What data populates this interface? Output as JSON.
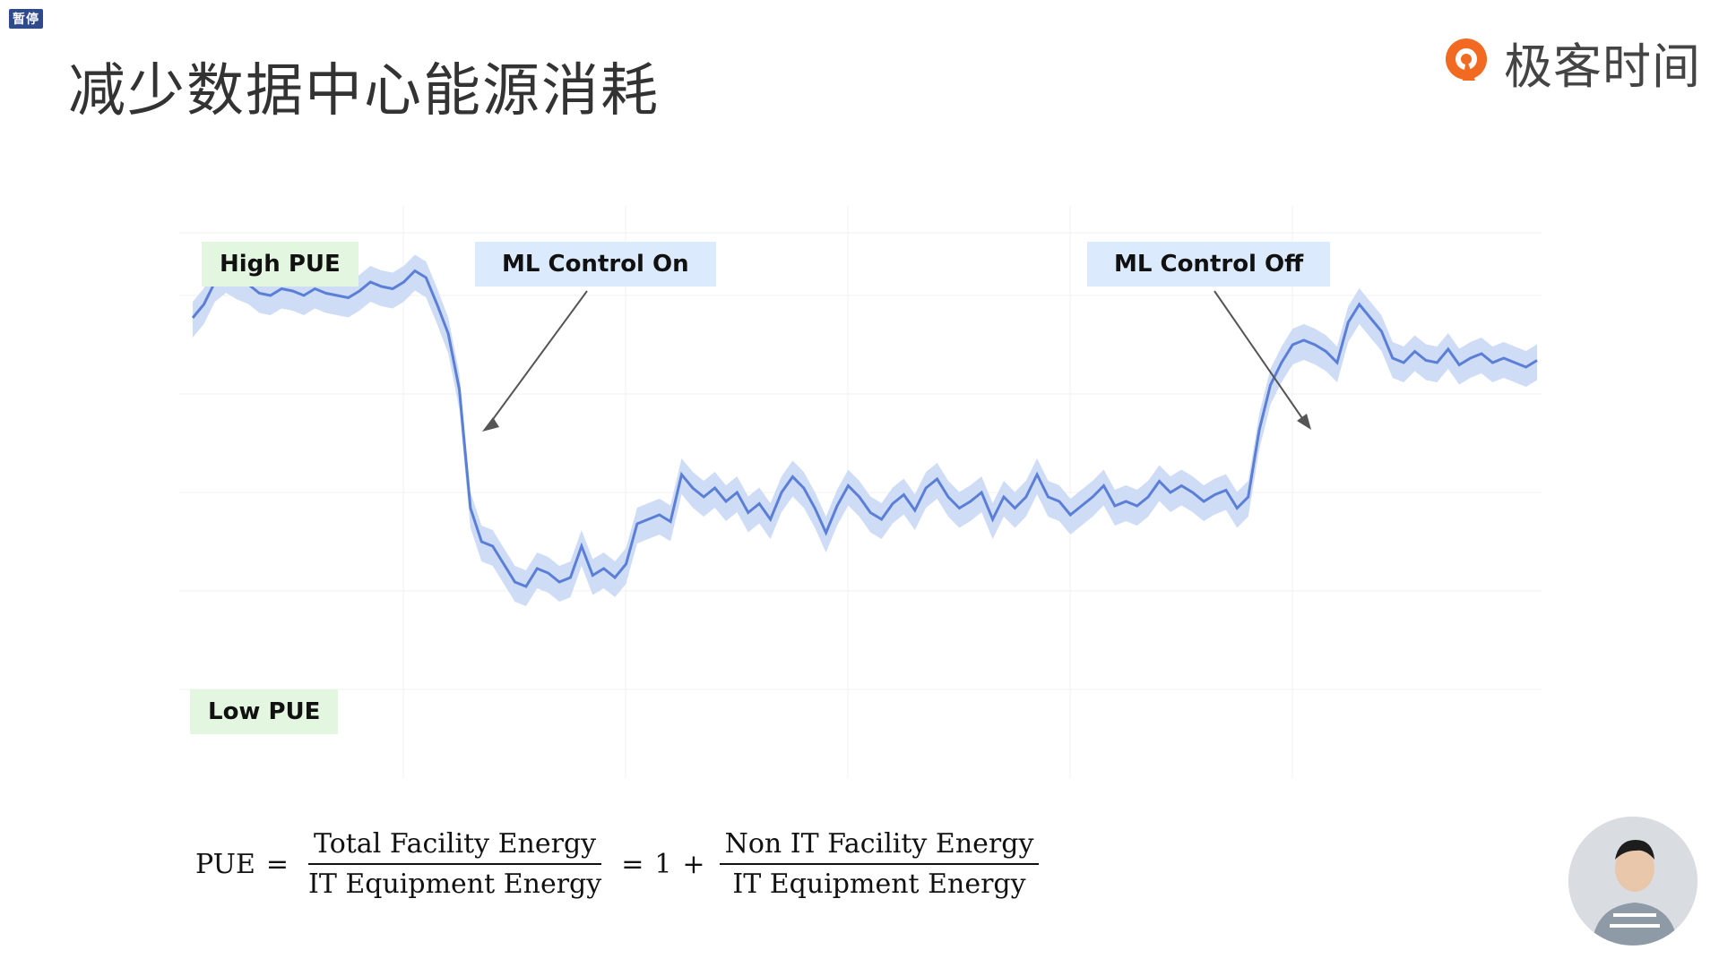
{
  "ui": {
    "pause_badge": "暂停",
    "title": "减少数据中心能源消耗",
    "brand": {
      "name": "极客时间",
      "icon": "geektime-logo-icon",
      "accent": "#f26a21"
    }
  },
  "labels": {
    "high_pue": "High PUE",
    "low_pue": "Low PUE",
    "ml_on": "ML Control On",
    "ml_off": "ML Control Off"
  },
  "formula": {
    "lhs": "PUE",
    "eq1": "=",
    "frac1_num": "Total Facility Energy",
    "frac1_den": "IT Equipment Energy",
    "eq2": "=",
    "one": "1",
    "plus": "+",
    "frac2_num": "Non IT Facility Energy",
    "frac2_den": "IT Equipment Energy"
  },
  "colors": {
    "line": "#5b7fd6",
    "band": "#c9d8f5",
    "green_tag": "#e3f6df",
    "blue_tag": "#dbeafc",
    "arrow": "#555555"
  },
  "chart_data": {
    "type": "line",
    "title": "",
    "xlabel": "",
    "ylabel": "",
    "grid": true,
    "series": [
      {
        "values": [
          0.4,
          0.46,
          0.56,
          0.6,
          0.57,
          0.55,
          0.51,
          0.5,
          0.53,
          0.52,
          0.5,
          0.53,
          0.51,
          0.5,
          0.49,
          0.52,
          0.56,
          0.54,
          0.53,
          0.56,
          0.61,
          0.58,
          0.46,
          0.33,
          0.08,
          -0.45,
          -0.6,
          -0.62,
          -0.7,
          -0.78,
          -0.8,
          -0.72,
          -0.74,
          -0.78,
          -0.76,
          -0.62,
          -0.75,
          -0.72,
          -0.76,
          -0.7,
          -0.52,
          -0.5,
          -0.48,
          -0.51,
          -0.3,
          -0.36,
          -0.4,
          -0.36,
          -0.42,
          -0.38,
          -0.47,
          -0.43,
          -0.5,
          -0.38,
          -0.31,
          -0.36,
          -0.45,
          -0.56,
          -0.44,
          -0.35,
          -0.4,
          -0.47,
          -0.5,
          -0.43,
          -0.39,
          -0.46,
          -0.36,
          -0.32,
          -0.4,
          -0.45,
          -0.42,
          -0.38,
          -0.5,
          -0.4,
          -0.45,
          -0.4,
          -0.3,
          -0.4,
          -0.42,
          -0.48,
          -0.44,
          -0.4,
          -0.35,
          -0.44,
          -0.42,
          -0.44,
          -0.4,
          -0.33,
          -0.38,
          -0.35,
          -0.38,
          -0.42,
          -0.39,
          -0.37,
          -0.45,
          -0.4,
          -0.1,
          0.1,
          0.2,
          0.28,
          0.3,
          0.28,
          0.25,
          0.2,
          0.38,
          0.46,
          0.4,
          0.34,
          0.22,
          0.2,
          0.25,
          0.21,
          0.2,
          0.26,
          0.19,
          0.22,
          0.24,
          0.2,
          0.22,
          0.2,
          0.18,
          0.21
        ]
      }
    ],
    "annotations": [
      "High PUE",
      "Low PUE",
      "ML Control On",
      "ML Control Off"
    ]
  }
}
